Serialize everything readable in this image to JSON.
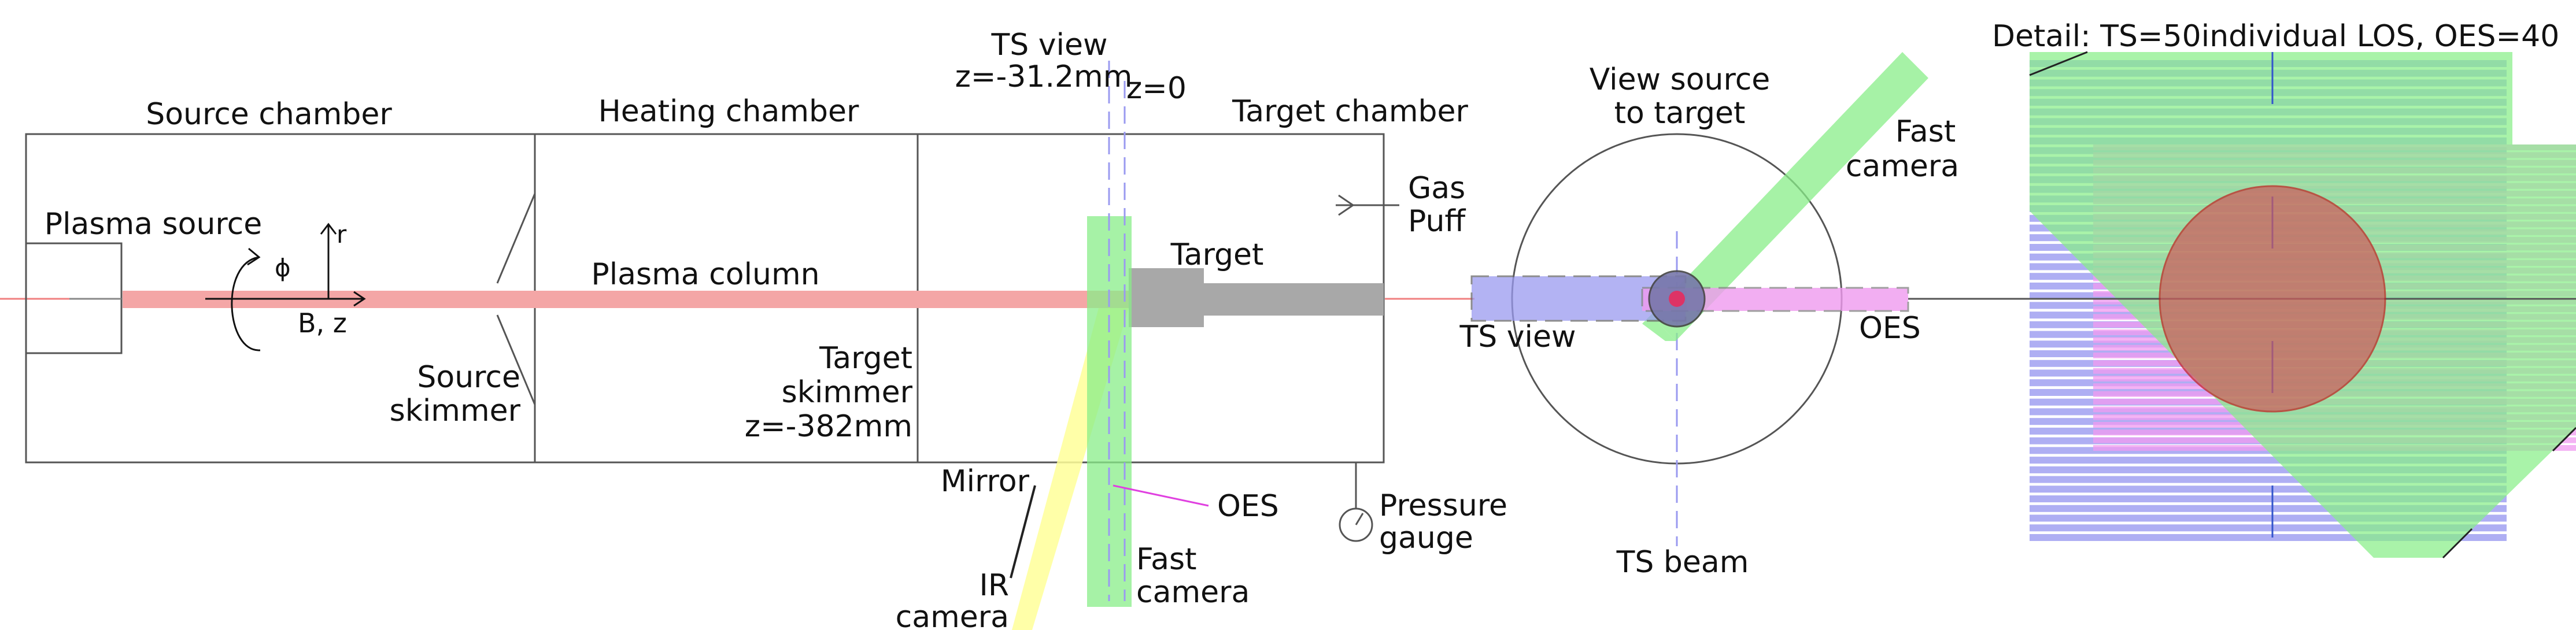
{
  "panels": {
    "side_view": {
      "labels": {
        "source_chamber": "Source chamber",
        "heating_chamber": "Heating chamber",
        "target_chamber": "Target chamber",
        "plasma_source": "Plasma source",
        "phi": "ϕ",
        "r": "r",
        "b_z": "B, z",
        "plasma_column": "Plasma column",
        "source_skimmer_1": "Source",
        "source_skimmer_2": "skimmer",
        "target_skimmer_1": "Target",
        "target_skimmer_2": "skimmer",
        "target_skimmer_3": "z=-382mm",
        "ts_view_1": "TS view",
        "ts_view_2": "z=-31.2mm",
        "z0": "z=0",
        "target": "Target",
        "gas_puff_1": "Gas",
        "gas_puff_2": "Puff",
        "mirror": "Mirror",
        "oes": "OES",
        "ir_camera_1": "IR",
        "ir_camera_2": "camera",
        "fast_camera_1": "Fast",
        "fast_camera_2": "camera",
        "pressure_gauge_1": "Pressure",
        "pressure_gauge_2": "gauge"
      }
    },
    "end_view": {
      "labels": {
        "title_1": "View source",
        "title_2": "to target",
        "fast_camera_1": "Fast",
        "fast_camera_2": "camera",
        "ts_view": "TS view",
        "oes": "OES",
        "ts_beam": "TS beam"
      }
    },
    "detail_view": {
      "title": "Detail: TS=50individual LOS, OES=40",
      "ts_los_count": 50,
      "oes_los_count": 40
    }
  },
  "colors": {
    "plasma": "#f4a6a6",
    "target": "#a8a8a8",
    "ts": "#9a9af0",
    "oes": "#f09af0",
    "fast_camera": "#9af09a",
    "ir_camera": "#ffff99",
    "plasma_detail": "#cd5c5c"
  }
}
